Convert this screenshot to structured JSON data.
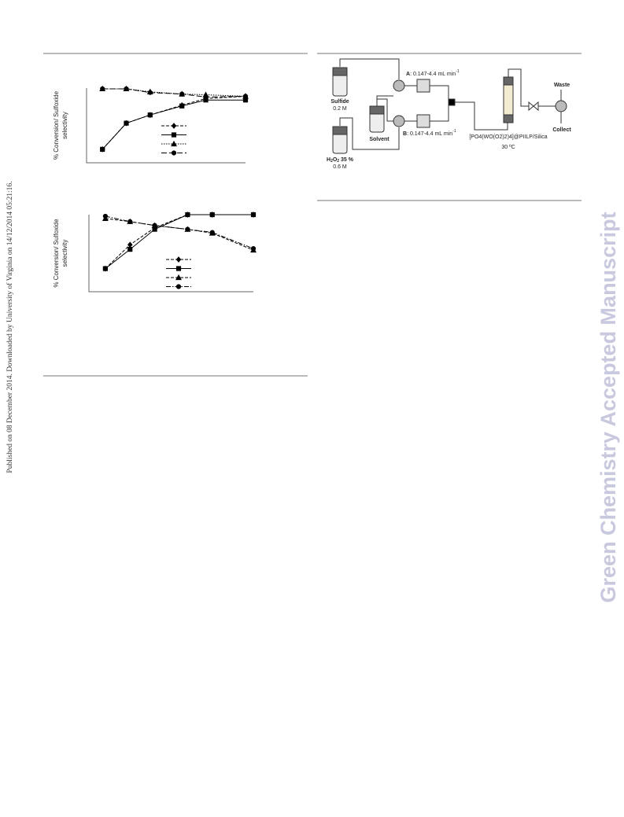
{
  "side_note": "Published on 08 December 2014. Downloaded by University of Virginia on 14/12/2014 05:21:16.",
  "watermark": "Green Chemistry Accepted Manuscript",
  "chart_data": [
    {
      "type": "line",
      "ylabel": [
        "% Conversion/ Sulfoxide",
        "selectivity"
      ],
      "x": [
        10,
        25,
        40,
        60,
        75,
        100
      ],
      "xlim": [
        0,
        100
      ],
      "ylim": [
        0,
        100
      ],
      "series": [
        {
          "color": "#000000",
          "marker": "diamond",
          "dash": "dashed",
          "values": [
            18,
            53,
            64,
            77,
            86,
            89
          ]
        },
        {
          "color": "#000000",
          "marker": "square",
          "dash": "solid",
          "values": [
            18,
            53,
            64,
            76,
            84,
            84
          ]
        },
        {
          "color": "#000000",
          "marker": "triangle",
          "dash": "dotted",
          "values": [
            99,
            99,
            95,
            92,
            91,
            89
          ]
        },
        {
          "color": "#000000",
          "marker": "circle",
          "dash": "longdash",
          "values": [
            99,
            99,
            94,
            92,
            88,
            89
          ]
        }
      ]
    },
    {
      "type": "line",
      "ylabel": [
        "% Conversion/ Sulfoxide",
        "selectivity"
      ],
      "x": [
        10,
        25,
        40,
        60,
        75,
        100
      ],
      "xlim": [
        0,
        100
      ],
      "ylim": [
        0,
        100
      ],
      "series": [
        {
          "color": "#000000",
          "marker": "diamond",
          "dash": "dashed",
          "values": [
            30,
            61,
            83,
            100,
            100,
            100
          ]
        },
        {
          "color": "#000000",
          "marker": "square",
          "dash": "solid",
          "values": [
            30,
            55,
            81,
            100,
            100,
            100
          ]
        },
        {
          "color": "#000000",
          "marker": "triangle",
          "dash": "dashed",
          "values": [
            95,
            91,
            86,
            81,
            76,
            54
          ]
        },
        {
          "color": "#000000",
          "marker": "circle",
          "dash": "dashdot",
          "values": [
            98,
            91,
            86,
            81,
            77,
            56
          ]
        }
      ]
    }
  ],
  "diagram": {
    "sulfide": {
      "name": "Sulfide",
      "conc": "0.2 M"
    },
    "h2o2": {
      "name": "H",
      "sub1": "2",
      "mid": "O",
      "sub2": "2",
      "rest": " 35 %",
      "conc": "0.6 M"
    },
    "solvent": "Solvent",
    "pump_a": {
      "letter": "A",
      "text": ": 0.147-4.4 mL min",
      "sup": "-1"
    },
    "pump_b": {
      "letter": "B",
      "text": ": 0.147-4.4 mL min",
      "sup": "-1"
    },
    "column": {
      "label": "[PO4(WO(O2)2)4]@PIILP/Silica",
      "temp": "30 ºC"
    },
    "waste": "Waste",
    "collect": "Collect"
  }
}
